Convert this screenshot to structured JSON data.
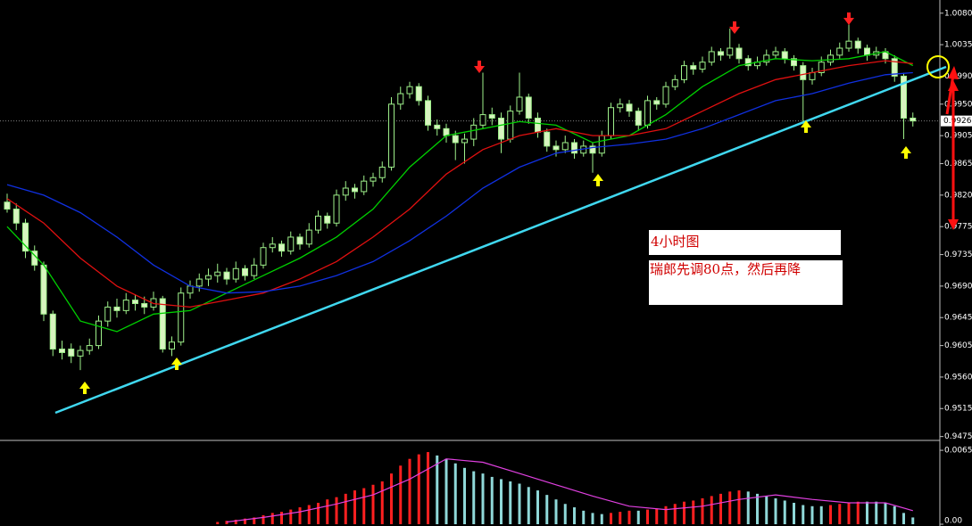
{
  "chart_data": {
    "type": "candlestick",
    "up_color": "#000000",
    "down_color": "#d8f5c0",
    "wick_color": "#9ef08a",
    "candles": [
      [
        0.981,
        0.9822,
        0.9795,
        0.98
      ],
      [
        0.98,
        0.9808,
        0.977,
        0.978
      ],
      [
        0.978,
        0.9786,
        0.973,
        0.974
      ],
      [
        0.974,
        0.9748,
        0.9712,
        0.972
      ],
      [
        0.972,
        0.9725,
        0.964,
        0.965
      ],
      [
        0.965,
        0.9655,
        0.959,
        0.96
      ],
      [
        0.96,
        0.9612,
        0.9585,
        0.9595
      ],
      [
        0.96,
        0.9608,
        0.958,
        0.959
      ],
      [
        0.959,
        0.9605,
        0.957,
        0.9598
      ],
      [
        0.9598,
        0.9615,
        0.9592,
        0.9605
      ],
      [
        0.9605,
        0.9648,
        0.96,
        0.964
      ],
      [
        0.964,
        0.9668,
        0.9632,
        0.966
      ],
      [
        0.966,
        0.9672,
        0.9645,
        0.9655
      ],
      [
        0.9655,
        0.968,
        0.965,
        0.967
      ],
      [
        0.967,
        0.9678,
        0.9655,
        0.9665
      ],
      [
        0.9665,
        0.9675,
        0.965,
        0.966
      ],
      [
        0.966,
        0.9682,
        0.9655,
        0.9672
      ],
      [
        0.9672,
        0.9676,
        0.9595,
        0.96
      ],
      [
        0.96,
        0.9618,
        0.959,
        0.961
      ],
      [
        0.961,
        0.9688,
        0.9605,
        0.968
      ],
      [
        0.968,
        0.9698,
        0.9672,
        0.969
      ],
      [
        0.969,
        0.9708,
        0.9682,
        0.97
      ],
      [
        0.97,
        0.9715,
        0.969,
        0.9705
      ],
      [
        0.9705,
        0.9722,
        0.9695,
        0.971
      ],
      [
        0.971,
        0.9716,
        0.9692,
        0.97
      ],
      [
        0.97,
        0.9725,
        0.9695,
        0.9715
      ],
      [
        0.9715,
        0.972,
        0.9698,
        0.9705
      ],
      [
        0.9705,
        0.973,
        0.97,
        0.972
      ],
      [
        0.972,
        0.9752,
        0.9715,
        0.9745
      ],
      [
        0.9745,
        0.976,
        0.9738,
        0.975
      ],
      [
        0.975,
        0.9755,
        0.9732,
        0.974
      ],
      [
        0.974,
        0.9768,
        0.9735,
        0.976
      ],
      [
        0.976,
        0.9765,
        0.9742,
        0.975
      ],
      [
        0.975,
        0.978,
        0.9745,
        0.977
      ],
      [
        0.977,
        0.9798,
        0.9765,
        0.979
      ],
      [
        0.979,
        0.9795,
        0.9772,
        0.978
      ],
      [
        0.978,
        0.9828,
        0.9775,
        0.982
      ],
      [
        0.982,
        0.984,
        0.9812,
        0.983
      ],
      [
        0.983,
        0.9836,
        0.9815,
        0.9825
      ],
      [
        0.9825,
        0.9848,
        0.982,
        0.984
      ],
      [
        0.984,
        0.9852,
        0.9832,
        0.9845
      ],
      [
        0.9845,
        0.9868,
        0.9838,
        0.986
      ],
      [
        0.986,
        0.996,
        0.9855,
        0.995
      ],
      [
        0.995,
        0.9975,
        0.9942,
        0.9965
      ],
      [
        0.9965,
        0.9982,
        0.9958,
        0.9975
      ],
      [
        0.9975,
        0.998,
        0.9948,
        0.9955
      ],
      [
        0.9955,
        0.9962,
        0.9912,
        0.992
      ],
      [
        0.992,
        0.9928,
        0.9905,
        0.9915
      ],
      [
        0.9915,
        0.9922,
        0.9895,
        0.9905
      ],
      [
        0.9905,
        0.9912,
        0.987,
        0.9895
      ],
      [
        0.9895,
        0.9908,
        0.9865,
        0.99
      ],
      [
        0.99,
        0.993,
        0.989,
        0.992
      ],
      [
        0.992,
        0.9995,
        0.9915,
        0.9935
      ],
      [
        0.9935,
        0.9945,
        0.992,
        0.993
      ],
      [
        0.993,
        0.9938,
        0.988,
        0.99
      ],
      [
        0.99,
        0.9948,
        0.9895,
        0.994
      ],
      [
        0.994,
        0.9995,
        0.9935,
        0.996
      ],
      [
        0.996,
        0.9965,
        0.9922,
        0.993
      ],
      [
        0.993,
        0.9938,
        0.9902,
        0.991
      ],
      [
        0.991,
        0.9915,
        0.9882,
        0.989
      ],
      [
        0.989,
        0.9898,
        0.9875,
        0.9885
      ],
      [
        0.9885,
        0.9905,
        0.988,
        0.9895
      ],
      [
        0.9895,
        0.99,
        0.9872,
        0.988
      ],
      [
        0.988,
        0.9898,
        0.9875,
        0.989
      ],
      [
        0.989,
        0.9895,
        0.9852,
        0.988
      ],
      [
        0.988,
        0.9912,
        0.9875,
        0.9905
      ],
      [
        0.9905,
        0.9952,
        0.99,
        0.9945
      ],
      [
        0.9945,
        0.9958,
        0.9938,
        0.995
      ],
      [
        0.995,
        0.9956,
        0.9932,
        0.994
      ],
      [
        0.994,
        0.9945,
        0.9912,
        0.992
      ],
      [
        0.992,
        0.9962,
        0.9915,
        0.9955
      ],
      [
        0.9955,
        0.996,
        0.9942,
        0.995
      ],
      [
        0.995,
        0.9982,
        0.9945,
        0.9975
      ],
      [
        0.9975,
        0.9992,
        0.997,
        0.9985
      ],
      [
        0.9985,
        1.0012,
        0.998,
        1.0005
      ],
      [
        1.0005,
        1.001,
        0.9992,
        1.0
      ],
      [
        1.0,
        1.0018,
        0.9995,
        1.001
      ],
      [
        1.001,
        1.0032,
        1.0005,
        1.0025
      ],
      [
        1.0025,
        1.003,
        1.0012,
        1.002
      ],
      [
        1.002,
        1.0058,
        1.0015,
        1.003
      ],
      [
        1.003,
        1.0036,
        1.0008,
        1.0015
      ],
      [
        1.0015,
        1.002,
        0.9998,
        1.0005
      ],
      [
        1.0005,
        1.0018,
        1.0,
        1.001
      ],
      [
        1.001,
        1.0028,
        1.0005,
        1.002
      ],
      [
        1.002,
        1.0032,
        1.0015,
        1.0025
      ],
      [
        1.0025,
        1.003,
        1.0008,
        1.0015
      ],
      [
        1.0015,
        1.002,
        0.9998,
        1.0005
      ],
      [
        1.0005,
        1.001,
        0.9925,
        0.9985
      ],
      [
        0.9985,
        1.0002,
        0.9978,
        0.9995
      ],
      [
        0.9995,
        1.0018,
        0.999,
        1.001
      ],
      [
        1.001,
        1.0028,
        1.0005,
        1.002
      ],
      [
        1.002,
        1.0038,
        1.0015,
        1.003
      ],
      [
        1.003,
        1.0065,
        1.0025,
        1.004
      ],
      [
        1.004,
        1.0045,
        1.0022,
        1.003
      ],
      [
        1.003,
        1.0035,
        1.0012,
        1.002
      ],
      [
        1.002,
        1.0032,
        1.0015,
        1.0025
      ],
      [
        1.0025,
        1.003,
        1.0008,
        1.0015
      ],
      [
        1.0015,
        1.002,
        0.9982,
        0.999
      ],
      [
        0.999,
        0.9995,
        0.99,
        0.993
      ],
      [
        0.993,
        0.9938,
        0.9918,
        0.9926
      ]
    ],
    "ma_x": [
      0,
      4,
      8,
      12,
      16,
      20,
      24,
      28,
      32,
      36,
      40,
      44,
      48,
      52,
      56,
      60,
      64,
      68,
      72,
      76,
      80,
      84,
      88,
      92,
      96,
      99
    ],
    "series": [
      {
        "color": "#00d000",
        "values": [
          0.9775,
          0.972,
          0.964,
          0.9625,
          0.965,
          0.9655,
          0.968,
          0.9705,
          0.973,
          0.976,
          0.98,
          0.986,
          0.9905,
          0.9915,
          0.9925,
          0.992,
          0.9895,
          0.9905,
          0.9935,
          0.9975,
          1.0005,
          1.0015,
          1.0012,
          1.0015,
          1.0025,
          1.0005
        ]
      },
      {
        "color": "#e01010",
        "values": [
          0.9815,
          0.978,
          0.973,
          0.969,
          0.9665,
          0.966,
          0.967,
          0.968,
          0.97,
          0.9725,
          0.976,
          0.98,
          0.985,
          0.9885,
          0.9905,
          0.9915,
          0.9905,
          0.9905,
          0.9915,
          0.994,
          0.9965,
          0.9985,
          0.9995,
          1.0005,
          1.0012,
          1.0008
        ]
      },
      {
        "color": "#1030e0",
        "values": [
          0.9835,
          0.982,
          0.9795,
          0.976,
          0.972,
          0.969,
          0.968,
          0.9682,
          0.969,
          0.9705,
          0.9725,
          0.9755,
          0.979,
          0.983,
          0.986,
          0.988,
          0.9888,
          0.9893,
          0.99,
          0.9915,
          0.9935,
          0.9955,
          0.9965,
          0.998,
          0.9992,
          0.9995
        ]
      }
    ],
    "ylim": [
      0.9472,
      1.0095
    ],
    "yticks": [
      {
        "value": 1.008,
        "label": "1.0080"
      },
      1.0035,
      {
        "value": 0.999,
        "label": "0.9990"
      },
      {
        "value": 0.995,
        "label": "0.9950"
      },
      0.9905,
      0.9865,
      {
        "value": 0.982,
        "label": "0.9820"
      },
      0.9775,
      0.9735,
      {
        "value": 0.969,
        "label": "0.9690"
      },
      0.9645,
      0.9605,
      {
        "value": 0.956,
        "label": "0.9560"
      },
      0.9515,
      0.9475
    ],
    "last_price": 0.9926,
    "annotations": [
      "4小时图",
      "瑞郎先调80点，然后再降"
    ],
    "macd": {
      "up_color": "#ff2020",
      "down_color": "#8fd8d8",
      "signal_color": "#e040e0",
      "values": [
        0,
        0,
        0,
        0,
        0,
        0,
        0,
        0,
        0,
        0,
        0,
        0,
        0,
        0,
        0,
        0,
        0,
        0,
        0,
        0,
        0,
        0,
        0,
        0.0002,
        0.0003,
        0.0004,
        0.0005,
        0.0006,
        0.0008,
        0.001,
        0.0011,
        0.0013,
        0.0015,
        0.0017,
        0.0019,
        0.0022,
        0.0024,
        0.0027,
        0.003,
        0.0032,
        0.0035,
        0.0038,
        0.0045,
        0.0052,
        0.0058,
        0.0062,
        0.0064,
        0.0061,
        0.0058,
        0.0054,
        0.005,
        0.0047,
        0.0045,
        0.0042,
        0.004,
        0.0038,
        0.0036,
        0.0033,
        0.003,
        0.0026,
        0.0022,
        0.0018,
        0.0015,
        0.0012,
        0.001,
        0.0009,
        0.001,
        0.0011,
        0.0012,
        0.0012,
        0.0013,
        0.0014,
        0.0016,
        0.0018,
        0.002,
        0.0021,
        0.0023,
        0.0025,
        0.0027,
        0.0029,
        0.003,
        0.0029,
        0.0027,
        0.0025,
        0.0023,
        0.0021,
        0.0019,
        0.0017,
        0.0016,
        0.0016,
        0.0017,
        0.0018,
        0.0019,
        0.002,
        0.002,
        0.002,
        0.0019,
        0.0016,
        0.001,
        0.0006
      ],
      "signal": [
        null,
        null,
        null,
        null,
        null,
        null,
        0.0002,
        0.0006,
        0.0011,
        0.0018,
        0.0026,
        0.004,
        0.0058,
        0.0055,
        0.0045,
        0.0035,
        0.0025,
        0.0016,
        0.0013,
        0.0016,
        0.0022,
        0.0026,
        0.0022,
        0.0019,
        0.0019,
        0.0012
      ],
      "ylim": [
        0,
        0.0072
      ],
      "yticks": [
        0.00656,
        {
          "value": 0,
          "label": "0.00"
        }
      ]
    }
  }
}
